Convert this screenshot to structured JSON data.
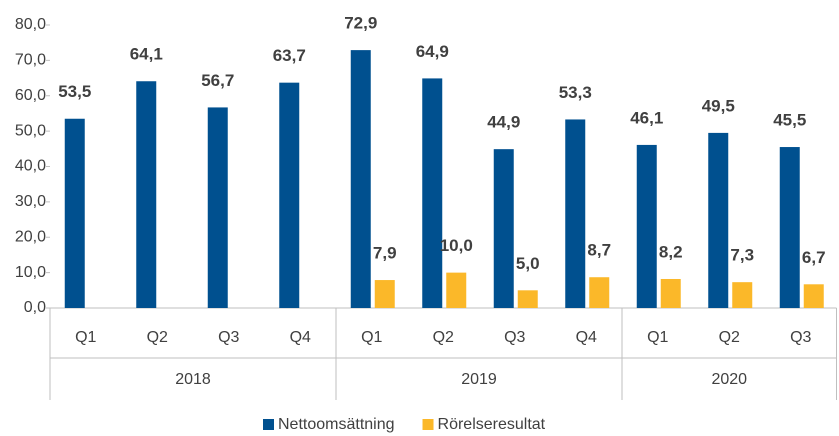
{
  "chart_data": {
    "type": "bar",
    "groups": [
      {
        "name": "2018",
        "categories": [
          "Q1",
          "Q2",
          "Q3",
          "Q4"
        ]
      },
      {
        "name": "2019",
        "categories": [
          "Q1",
          "Q2",
          "Q3",
          "Q4"
        ]
      },
      {
        "name": "2020",
        "categories": [
          "Q1",
          "Q2",
          "Q3"
        ]
      }
    ],
    "series": [
      {
        "name": "Nettoomsättning",
        "color": "#00508f",
        "values": [
          53.5,
          64.1,
          56.7,
          63.7,
          72.9,
          64.9,
          44.9,
          53.3,
          46.1,
          49.5,
          45.5
        ],
        "value_labels": [
          "53,5",
          "64,1",
          "56,7",
          "63,7",
          "72,9",
          "64,9",
          "44,9",
          "53,3",
          "46,1",
          "49,5",
          "45,5"
        ]
      },
      {
        "name": "Rörelseresultat",
        "color": "#fbb829",
        "values": [
          null,
          null,
          null,
          null,
          7.9,
          10.0,
          5.0,
          8.7,
          8.2,
          7.3,
          6.7
        ],
        "value_labels": [
          null,
          null,
          null,
          null,
          "7,9",
          "10,0",
          "5,0",
          "8,7",
          "8,2",
          "7,3",
          "6,7"
        ]
      }
    ],
    "ylim": [
      0,
      80
    ],
    "yticks": [
      {
        "value": 0,
        "label": "0,0"
      },
      {
        "value": 10,
        "label": "10,0"
      },
      {
        "value": 20,
        "label": "20,0"
      },
      {
        "value": 30,
        "label": "30,0"
      },
      {
        "value": 40,
        "label": "40,0"
      },
      {
        "value": 50,
        "label": "50,0"
      },
      {
        "value": 60,
        "label": "60,0"
      },
      {
        "value": 70,
        "label": "70,0"
      },
      {
        "value": 80,
        "label": "80,0"
      }
    ],
    "legend": "bottom"
  }
}
